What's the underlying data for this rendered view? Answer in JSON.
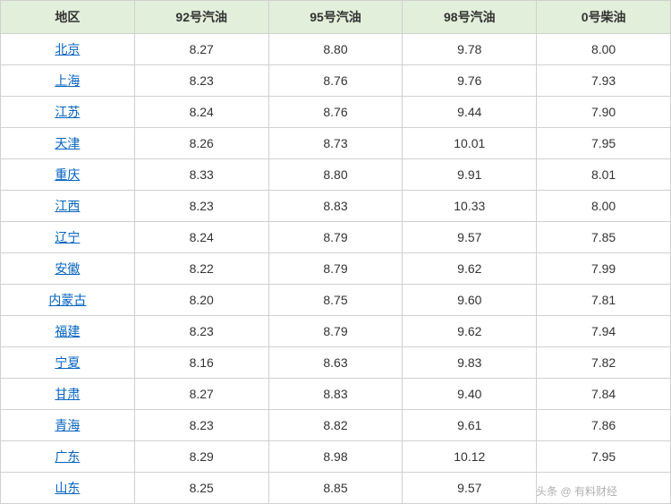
{
  "table": {
    "type": "table",
    "header_bg": "#e2efda",
    "header_color": "#333333",
    "cell_color": "#333333",
    "link_color": "#0563c1",
    "border_color": "#d0d0d0",
    "background_color": "#ffffff",
    "font_size": 14,
    "columns": [
      "地区",
      "92号汽油",
      "95号汽油",
      "98号汽油",
      "0号柴油"
    ],
    "rows": [
      [
        "北京",
        "8.27",
        "8.80",
        "9.78",
        "8.00"
      ],
      [
        "上海",
        "8.23",
        "8.76",
        "9.76",
        "7.93"
      ],
      [
        "江苏",
        "8.24",
        "8.76",
        "9.44",
        "7.90"
      ],
      [
        "天津",
        "8.26",
        "8.73",
        "10.01",
        "7.95"
      ],
      [
        "重庆",
        "8.33",
        "8.80",
        "9.91",
        "8.01"
      ],
      [
        "江西",
        "8.23",
        "8.83",
        "10.33",
        "8.00"
      ],
      [
        "辽宁",
        "8.24",
        "8.79",
        "9.57",
        "7.85"
      ],
      [
        "安徽",
        "8.22",
        "8.79",
        "9.62",
        "7.99"
      ],
      [
        "内蒙古",
        "8.20",
        "8.75",
        "9.60",
        "7.81"
      ],
      [
        "福建",
        "8.23",
        "8.79",
        "9.62",
        "7.94"
      ],
      [
        "宁夏",
        "8.16",
        "8.63",
        "9.83",
        "7.82"
      ],
      [
        "甘肃",
        "8.27",
        "8.83",
        "9.40",
        "7.84"
      ],
      [
        "青海",
        "8.23",
        "8.82",
        "9.61",
        "7.86"
      ],
      [
        "广东",
        "8.29",
        "8.98",
        "10.12",
        "7.95"
      ],
      [
        "山东",
        "8.25",
        "8.85",
        "9.57",
        ""
      ]
    ]
  },
  "watermark": "头条 @ 有料财经"
}
